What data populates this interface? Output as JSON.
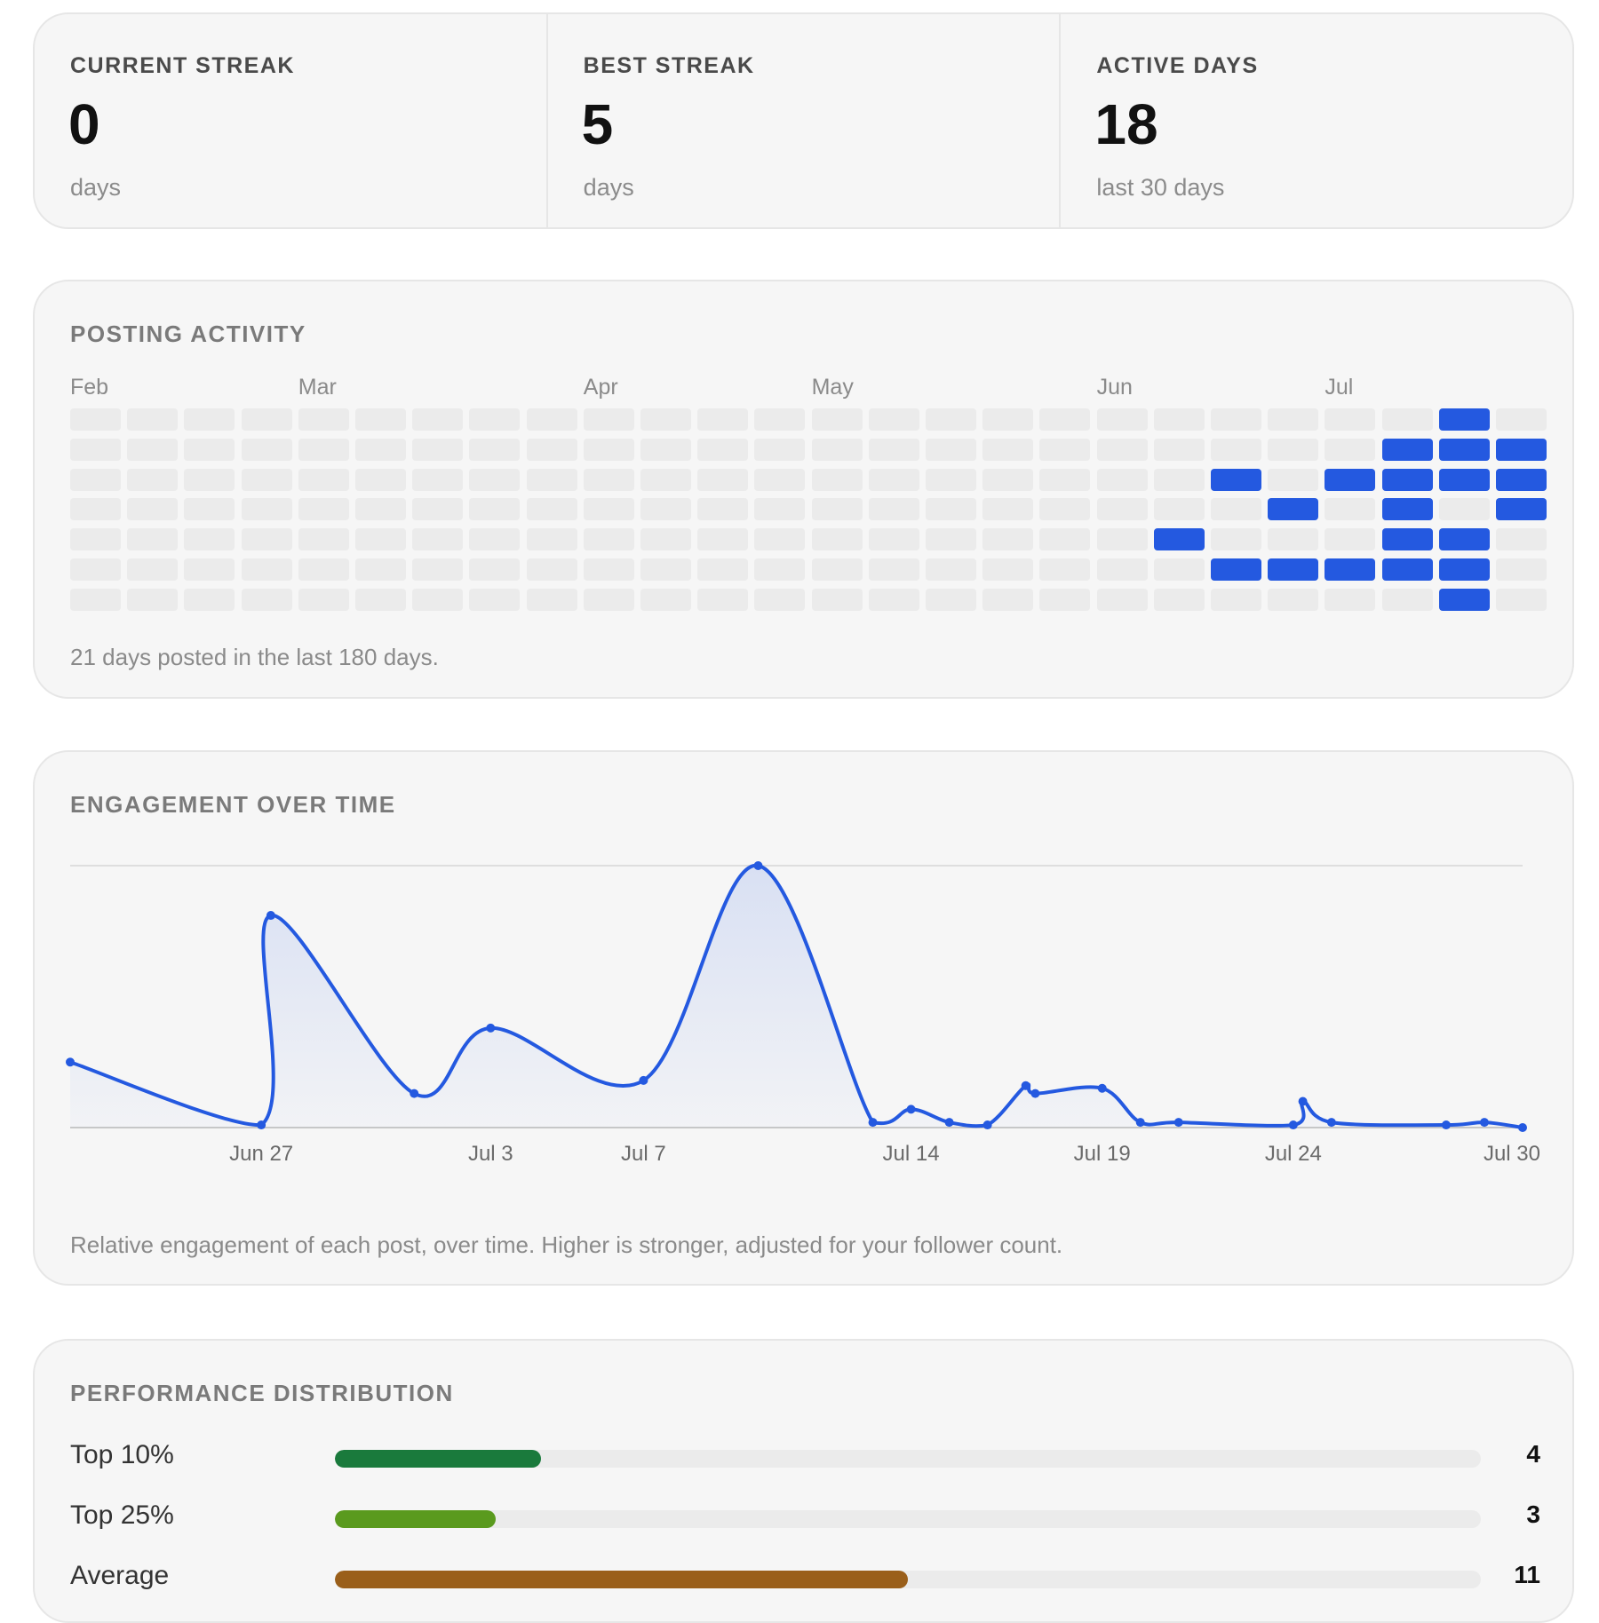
{
  "stats": [
    {
      "label": "CURRENT STREAK",
      "value": "0",
      "unit": "days"
    },
    {
      "label": "BEST STREAK",
      "value": "5",
      "unit": "days"
    },
    {
      "label": "ACTIVE DAYS",
      "value": "18",
      "unit": "last 30 days"
    }
  ],
  "activity": {
    "title": "POSTING ACTIVITY",
    "months": [
      {
        "label": "Feb",
        "week": 0
      },
      {
        "label": "Mar",
        "week": 4
      },
      {
        "label": "Apr",
        "week": 9
      },
      {
        "label": "May",
        "week": 13
      },
      {
        "label": "Jun",
        "week": 18
      },
      {
        "label": "Jul",
        "week": 22
      }
    ],
    "weeks": 26,
    "days_per_week": 7,
    "active_cells": [
      [
        19,
        4
      ],
      [
        20,
        2
      ],
      [
        20,
        5
      ],
      [
        21,
        3
      ],
      [
        21,
        5
      ],
      [
        22,
        2
      ],
      [
        22,
        5
      ],
      [
        23,
        1
      ],
      [
        23,
        2
      ],
      [
        23,
        3
      ],
      [
        23,
        4
      ],
      [
        23,
        5
      ],
      [
        24,
        0
      ],
      [
        24,
        1
      ],
      [
        24,
        2
      ],
      [
        24,
        4
      ],
      [
        24,
        5
      ],
      [
        24,
        6
      ],
      [
        25,
        1
      ],
      [
        25,
        2
      ],
      [
        25,
        3
      ]
    ],
    "active_color": "#2459e0",
    "footer": "21 days posted in the last 180 days."
  },
  "engagement": {
    "title": "ENGAGEMENT OVER TIME",
    "footer": "Relative engagement of each post, over time. Higher is stronger, adjusted for your follower count.",
    "x_ticks": [
      "Jun 27",
      "Jul 3",
      "Jul 7",
      "Jul 14",
      "Jul 19",
      "Jul 24",
      "Jul 30"
    ]
  },
  "chart_data": {
    "type": "line",
    "title": "ENGAGEMENT OVER TIME",
    "xlabel": "",
    "ylabel": "",
    "x_tick_labels": [
      "Jun 27",
      "Jul 3",
      "Jul 7",
      "Jul 14",
      "Jul 19",
      "Jul 24",
      "Jul 30"
    ],
    "ylim": [
      0,
      1
    ],
    "grid": false,
    "series": [
      {
        "color": "#2459e0",
        "points": [
          {
            "x": "Jun 22",
            "y": 0.25
          },
          {
            "x": "Jun 27",
            "y": 0.01
          },
          {
            "x": "Jun 27",
            "y": 0.81
          },
          {
            "x": "Jul 1",
            "y": 0.13
          },
          {
            "x": "Jul 3",
            "y": 0.38
          },
          {
            "x": "Jul 7",
            "y": 0.18
          },
          {
            "x": "Jul 10",
            "y": 1.0
          },
          {
            "x": "Jul 13",
            "y": 0.02
          },
          {
            "x": "Jul 14",
            "y": 0.07
          },
          {
            "x": "Jul 15",
            "y": 0.02
          },
          {
            "x": "Jul 16",
            "y": 0.01
          },
          {
            "x": "Jul 17",
            "y": 0.16
          },
          {
            "x": "Jul 17",
            "y": 0.13
          },
          {
            "x": "Jul 19",
            "y": 0.15
          },
          {
            "x": "Jul 20",
            "y": 0.02
          },
          {
            "x": "Jul 21",
            "y": 0.02
          },
          {
            "x": "Jul 24",
            "y": 0.01
          },
          {
            "x": "Jul 24",
            "y": 0.1
          },
          {
            "x": "Jul 25",
            "y": 0.02
          },
          {
            "x": "Jul 28",
            "y": 0.01
          },
          {
            "x": "Jul 29",
            "y": 0.02
          },
          {
            "x": "Jul 30",
            "y": 0.0
          }
        ]
      }
    ]
  },
  "distribution": {
    "title": "PERFORMANCE DISTRIBUTION",
    "rows": [
      {
        "label": "Top 10%",
        "count": "4",
        "fraction": 0.18,
        "color": "#1a7a3c"
      },
      {
        "label": "Top 25%",
        "count": "3",
        "fraction": 0.14,
        "color": "#5a9a1e"
      },
      {
        "label": "Average",
        "count": "11",
        "fraction": 0.5,
        "color": "#9a5f1a"
      }
    ]
  }
}
